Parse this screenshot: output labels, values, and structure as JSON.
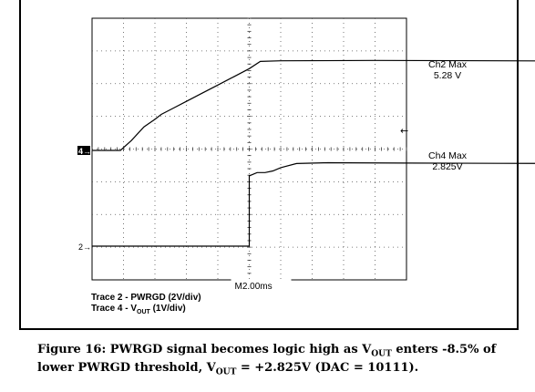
{
  "chart_data": {
    "type": "line",
    "x_unit": "ms",
    "x_div": 2,
    "time_base": "M2.00ms",
    "markers": {
      "ch4": "4",
      "ch2": "2"
    },
    "readouts": {
      "ch2_title": "Ch2 Max",
      "ch2_value": "5.28 V",
      "ch4_title": "Ch4 Max",
      "ch4_value": "2.825V"
    },
    "notes": [
      "Trace 2 - PWRGD (2V/div)",
      "Trace 4 - V",
      "OUT",
      " (1V/div)"
    ],
    "series": [
      {
        "name": "Trace 2 - PWRGD (2V/div)",
        "units": "V",
        "x": [
          0,
          5,
          10,
          10.0,
          10.5,
          11.0,
          11.5,
          12.0,
          13.0,
          15.0,
          20.0,
          26.0,
          34.2
        ],
        "y": [
          0.0,
          0.0,
          0.0,
          4.3,
          4.5,
          4.5,
          4.6,
          4.8,
          5.05,
          5.1,
          5.08,
          5.06,
          5.05
        ]
      },
      {
        "name": "V OUT",
        "units": "V",
        "x": [
          0,
          1.8,
          2.5,
          3.3,
          3.6,
          4.0,
          4.4,
          5.2,
          6.0,
          7.0,
          8.0,
          9.0,
          10.0,
          10.7,
          12.0,
          18.0,
          26.0,
          34.2
        ],
        "y": [
          0.0,
          0.0,
          0.3,
          0.72,
          0.82,
          0.95,
          1.1,
          1.3,
          1.5,
          1.75,
          2.0,
          2.25,
          2.5,
          2.72,
          2.74,
          2.75,
          2.74,
          2.73
        ]
      }
    ]
  },
  "caption": {
    "part1": "Figure 16: PWRGD signal becomes logic high as V",
    "sub1": "OUT",
    "part2": " enters -8.5% of lower PWRGD threshold, V",
    "sub2": "OUT",
    "part3": " = +2.825V (DAC = 10111)."
  }
}
